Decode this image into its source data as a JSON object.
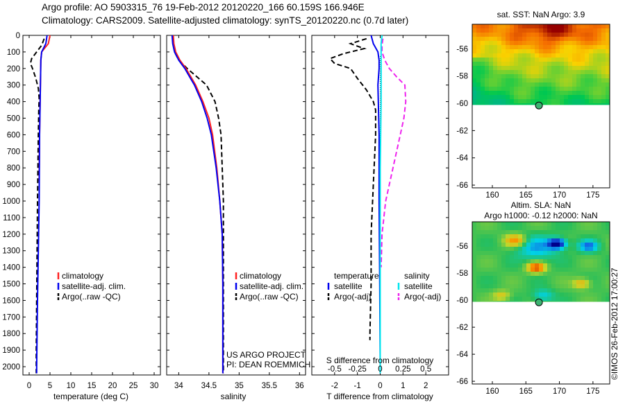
{
  "header": {
    "line1": "Argo profile: AO 5903315_76 19-Feb-2012 20120220_166 60.159S 166.946E",
    "line2": "Climatology: CARS2009. Satellite-adjusted climatology: synTS_20120220.nc (0.7d later)"
  },
  "side_credit": "©IMOS 26-Feb-2012 17:00:27",
  "colors": {
    "climatology": "#ff2020",
    "satellite": "#0000ee",
    "argo": "#000000",
    "satellite_salinity": "#00e5ee",
    "argo_salinity": "#ee22ee",
    "float_marker": "#3cb371"
  },
  "chart_data": [
    {
      "type": "line",
      "panel": "temperature",
      "xlabel": "temperature (deg C)",
      "xlim": [
        -1.5,
        31.5
      ],
      "xticks": [
        0,
        5,
        10,
        15,
        20,
        25,
        30
      ],
      "ylim": [
        2050,
        0
      ],
      "yticks": [
        0,
        100,
        200,
        300,
        400,
        500,
        600,
        700,
        800,
        900,
        1000,
        1100,
        1200,
        1300,
        1400,
        1500,
        1600,
        1700,
        1800,
        1900,
        2000
      ],
      "grid": false,
      "legend": [
        "climatology",
        "satellite-adj. clim.",
        "Argo(..raw -QC)"
      ],
      "legend_position": "lower-center",
      "series": [
        {
          "name": "climatology",
          "depth": [
            0,
            50,
            100,
            150,
            300,
            600,
            880
          ],
          "values": [
            5.0,
            4.6,
            3.0,
            2.8,
            2.7,
            2.5,
            2.4
          ]
        },
        {
          "name": "satellite-adj. clim.",
          "depth": [
            0,
            50,
            100,
            150,
            300,
            600,
            1000,
            1300,
            1600,
            2000,
            2040
          ],
          "values": [
            4.3,
            4.0,
            3.0,
            2.8,
            2.7,
            2.5,
            2.4,
            2.2,
            2.0,
            1.8,
            1.8
          ]
        },
        {
          "name": "Argo(..raw -QC)",
          "depth": [
            20,
            60,
            100,
            140,
            170,
            200,
            260,
            320,
            380,
            450,
            600,
            800,
            1000,
            1300,
            1600,
            1900,
            2040
          ],
          "values": [
            3.6,
            3.0,
            1.8,
            0.6,
            0.3,
            0.8,
            1.6,
            2.2,
            2.4,
            2.3,
            2.2,
            2.1,
            2.0,
            1.9,
            1.8,
            1.7,
            1.7
          ]
        }
      ]
    },
    {
      "type": "line",
      "panel": "salinity",
      "xlabel": "salinity",
      "xlim": [
        33.8,
        36.1
      ],
      "xticks": [
        34,
        34.5,
        35,
        35.5,
        36
      ],
      "ylim": [
        2050,
        0
      ],
      "grid": false,
      "legend": [
        "climatology",
        "satellite-adj. clim.",
        "Argo(..raw -QC)"
      ],
      "legend_position": "lower-center",
      "annotation": [
        "US ARGO PROJECT",
        "PI: DEAN ROEMMICH"
      ],
      "series": [
        {
          "name": "climatology",
          "depth": [
            0,
            50,
            100,
            150,
            200,
            250,
            300,
            400,
            500,
            600,
            800,
            1000,
            1200,
            1500,
            2040
          ],
          "values": [
            33.91,
            33.92,
            33.95,
            34.02,
            34.12,
            34.2,
            34.28,
            34.4,
            34.5,
            34.56,
            34.63,
            34.68,
            34.72,
            34.73,
            34.73
          ]
        },
        {
          "name": "satellite-adj. clim.",
          "depth": [
            0,
            50,
            100,
            150,
            200,
            250,
            300,
            400,
            500,
            600,
            800,
            1000,
            1200,
            1500,
            2040
          ],
          "values": [
            33.89,
            33.9,
            33.93,
            34.0,
            34.1,
            34.18,
            34.26,
            34.38,
            34.47,
            34.54,
            34.62,
            34.68,
            34.72,
            34.73,
            34.73
          ]
        },
        {
          "name": "Argo(..raw -QC)",
          "depth": [
            20,
            60,
            100,
            150,
            200,
            250,
            300,
            400,
            500,
            600,
            800,
            1000,
            1150,
            1300,
            1500,
            2040
          ],
          "values": [
            33.9,
            33.91,
            33.93,
            34.0,
            34.14,
            34.3,
            34.46,
            34.6,
            34.66,
            34.7,
            34.72,
            34.74,
            34.74,
            34.74,
            34.74,
            34.74
          ]
        }
      ]
    },
    {
      "type": "line",
      "panel": "difference",
      "xlabel": "T difference from climatology",
      "xlabel_top": "S difference from climatology",
      "t_xlim": [
        -3,
        3
      ],
      "t_xticks": [
        -2,
        -1,
        0,
        1,
        2
      ],
      "s_xticks": [
        -0.5,
        -0.25,
        0,
        0.25,
        0.5
      ],
      "s_xtick_labels": [
        "-0.5",
        "-0.25",
        "0",
        "0.25",
        "0.5"
      ],
      "ylim": [
        2050,
        0
      ],
      "legend_temperature": {
        "title": "temperature",
        "entries": [
          "satellite",
          "Argo(-adj)"
        ]
      },
      "legend_salinity": {
        "title": "salinity",
        "entries": [
          "satellite",
          "Argo(-adj)"
        ]
      },
      "series": [
        {
          "name": "temperature satellite",
          "unit": "degC",
          "depth": [
            0,
            50,
            100,
            150,
            200,
            300,
            600,
            1000,
            1500,
            2000,
            2040
          ],
          "values": [
            -0.4,
            -0.3,
            -0.1,
            -0.05,
            -0.05,
            -0.1,
            -0.05,
            -0.05,
            -0.02,
            0.0,
            0.0
          ]
        },
        {
          "name": "temperature Argo(-adj)",
          "unit": "degC",
          "depth": [
            20,
            50,
            80,
            110,
            140,
            170,
            200,
            260,
            330,
            400,
            450,
            600,
            900,
            1200,
            1500,
            1800,
            1840
          ],
          "values": [
            -0.6,
            -1.3,
            -0.7,
            -1.6,
            -2.2,
            -2.0,
            -1.3,
            -1.0,
            -0.6,
            -0.3,
            -0.2,
            -0.2,
            -0.3,
            -0.4,
            -0.4,
            -0.45,
            -0.45
          ]
        },
        {
          "name": "salinity satellite",
          "unit": "psu",
          "depth": [
            0,
            50,
            100,
            200,
            400,
            800,
            1200,
            1600,
            2040
          ],
          "values": [
            0.02,
            0.01,
            0.01,
            0.01,
            0.01,
            0.0,
            0.0,
            0.0,
            0.0
          ]
        },
        {
          "name": "salinity Argo(-adj)",
          "unit": "psu",
          "depth": [
            20,
            60,
            100,
            150,
            200,
            250,
            300,
            400,
            500,
            600,
            800,
            1000,
            1200,
            1400
          ],
          "values": [
            0.03,
            0.02,
            0.02,
            0.05,
            0.1,
            0.18,
            0.27,
            0.28,
            0.26,
            0.22,
            0.14,
            0.06,
            0.02,
            0.01
          ]
        }
      ]
    },
    {
      "type": "heatmap",
      "panel": "sst_map",
      "title": "sat. SST: NaN Argo: 3.9",
      "xlim": [
        157,
        177.5
      ],
      "ylim": [
        -66.2,
        -54.2
      ],
      "xticks": [
        160,
        165,
        170,
        175
      ],
      "yticks": [
        -56,
        -58,
        -60,
        -62,
        -64,
        -66
      ],
      "data_extent_south": -60.1,
      "marker": {
        "lon": 166.946,
        "lat": -60.159
      }
    },
    {
      "type": "heatmap",
      "panel": "sla_map",
      "title": "Altim. SLA: NaN",
      "subtitle": "Argo h1000: -0.12 h2000: NaN",
      "xlim": [
        157,
        177.5
      ],
      "ylim": [
        -66.2,
        -54.2
      ],
      "xticks": [
        160,
        165,
        170,
        175
      ],
      "yticks": [
        -56,
        -58,
        -60,
        -62,
        -64,
        -66
      ],
      "data_extent_south": -60.1,
      "marker": {
        "lon": 166.946,
        "lat": -60.159
      }
    }
  ]
}
